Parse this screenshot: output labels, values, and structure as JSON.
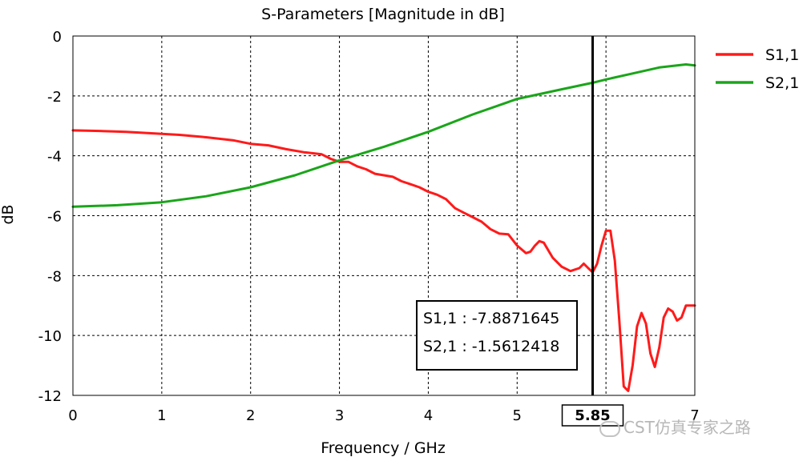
{
  "chart_data": {
    "type": "line",
    "title": "S-Parameters [Magnitude in dB]",
    "xlabel": "Frequency / GHz",
    "ylabel": "dB",
    "xlim": [
      0,
      7
    ],
    "ylim": [
      -12,
      0
    ],
    "xticks": [
      "0",
      "1",
      "2",
      "3",
      "4",
      "5",
      "6",
      "7"
    ],
    "yticks": [
      "0",
      "-2",
      "-4",
      "-6",
      "-8",
      "-10",
      "-12"
    ],
    "grid": true,
    "legend_position": "right",
    "marker": {
      "x": 5.85,
      "label": "5.85",
      "readouts": [
        {
          "text": "S1,1 : -7.8871645",
          "color": "#ff1a1a"
        },
        {
          "text": "S2,1 : -1.5612418",
          "color": "#1aa51a"
        }
      ]
    },
    "series": [
      {
        "name": "S1,1",
        "color": "#ff1a1a",
        "x": [
          0,
          0.3,
          0.6,
          0.9,
          1.2,
          1.5,
          1.8,
          2.0,
          2.2,
          2.4,
          2.6,
          2.8,
          2.9,
          3.0,
          3.1,
          3.2,
          3.3,
          3.4,
          3.5,
          3.6,
          3.7,
          3.8,
          3.9,
          4.0,
          4.1,
          4.2,
          4.3,
          4.4,
          4.5,
          4.6,
          4.7,
          4.8,
          4.9,
          5.0,
          5.1,
          5.15,
          5.2,
          5.25,
          5.3,
          5.4,
          5.5,
          5.6,
          5.7,
          5.75,
          5.8,
          5.85,
          5.9,
          5.95,
          6.0,
          6.05,
          6.1,
          6.15,
          6.2,
          6.25,
          6.3,
          6.35,
          6.4,
          6.45,
          6.5,
          6.55,
          6.6,
          6.65,
          6.7,
          6.75,
          6.8,
          6.85,
          6.9,
          7.0
        ],
        "y": [
          -3.15,
          -3.17,
          -3.2,
          -3.25,
          -3.3,
          -3.38,
          -3.48,
          -3.6,
          -3.65,
          -3.78,
          -3.88,
          -3.95,
          -4.1,
          -4.2,
          -4.2,
          -4.35,
          -4.45,
          -4.6,
          -4.65,
          -4.7,
          -4.85,
          -4.95,
          -5.05,
          -5.2,
          -5.3,
          -5.45,
          -5.75,
          -5.9,
          -6.05,
          -6.2,
          -6.45,
          -6.6,
          -6.62,
          -7.0,
          -7.25,
          -7.2,
          -7.0,
          -6.85,
          -6.9,
          -7.4,
          -7.7,
          -7.85,
          -7.75,
          -7.6,
          -7.75,
          -7.89,
          -7.6,
          -7.0,
          -6.5,
          -6.5,
          -7.5,
          -9.5,
          -11.7,
          -11.85,
          -11.0,
          -9.7,
          -9.25,
          -9.6,
          -10.6,
          -11.05,
          -10.4,
          -9.4,
          -9.1,
          -9.2,
          -9.5,
          -9.4,
          -9.0,
          -9.0
        ]
      },
      {
        "name": "S2,1",
        "color": "#1aa51a",
        "x": [
          0,
          0.5,
          1.0,
          1.5,
          2.0,
          2.5,
          3.0,
          3.5,
          4.0,
          4.5,
          5.0,
          5.5,
          5.85,
          6.0,
          6.3,
          6.6,
          6.9,
          7.0
        ],
        "y": [
          -5.7,
          -5.65,
          -5.55,
          -5.35,
          -5.05,
          -4.65,
          -4.15,
          -3.7,
          -3.2,
          -2.62,
          -2.1,
          -1.78,
          -1.56,
          -1.45,
          -1.25,
          -1.05,
          -0.95,
          -0.98
        ]
      }
    ]
  },
  "watermark": {
    "text": "CST仿真专家之路"
  }
}
